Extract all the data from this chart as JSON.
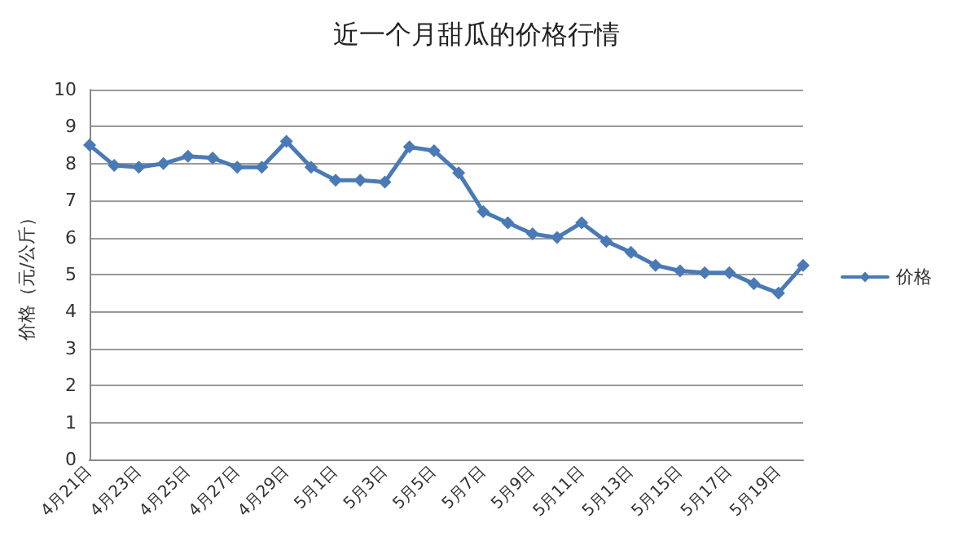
{
  "chart_data": {
    "type": "line",
    "title": "近一个月甜瓜的价格行情",
    "ylabel": "价格（元/公斤）",
    "categories": [
      "4月21日",
      null,
      "4月23日",
      null,
      "4月25日",
      null,
      "4月27日",
      null,
      "4月29日",
      null,
      "5月1日",
      null,
      "5月3日",
      null,
      "5月5日",
      null,
      "5月7日",
      null,
      "5月9日",
      null,
      "5月11日",
      null,
      "5月13日",
      null,
      "5月15日",
      null,
      "5月17日",
      null,
      "5月19日",
      null
    ],
    "series": [
      {
        "name": "价格",
        "color": "#4a7ab5",
        "values": [
          8.5,
          7.95,
          7.9,
          8.0,
          8.2,
          8.15,
          7.9,
          7.9,
          8.6,
          7.9,
          7.55,
          7.55,
          7.5,
          8.45,
          8.35,
          7.75,
          6.7,
          6.4,
          6.1,
          6.0,
          6.4,
          5.9,
          5.6,
          5.25,
          5.1,
          5.05,
          5.05,
          4.75,
          4.5,
          5.25
        ]
      }
    ],
    "ylim": [
      0,
      10
    ],
    "yticks": [
      0,
      1,
      2,
      3,
      4,
      5,
      6,
      7,
      8,
      9,
      10
    ],
    "grid": "y",
    "legend": "right",
    "marker": "diamond",
    "line_style": "solid"
  }
}
